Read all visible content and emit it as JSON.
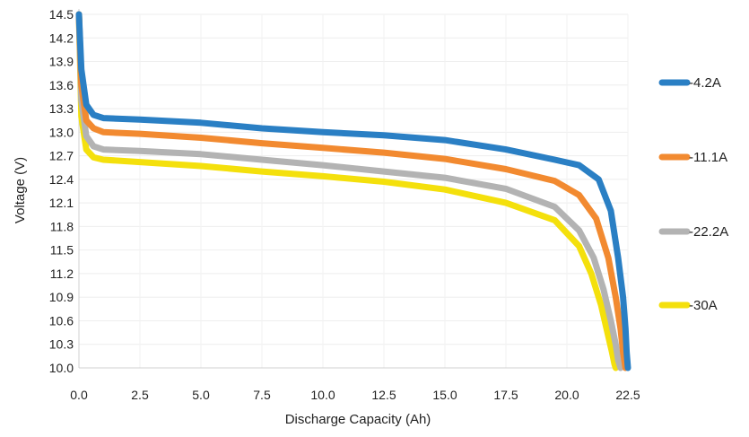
{
  "chart_data": {
    "type": "line",
    "title": "",
    "xlabel": "Discharge Capacity (Ah)",
    "ylabel": "Voltage (V)",
    "xlim": [
      0,
      22.5
    ],
    "ylim": [
      10.0,
      14.5
    ],
    "x_ticks": [
      "0.0",
      "2.5",
      "5.0",
      "7.5",
      "10.0",
      "12.5",
      "15.0",
      "17.5",
      "20.0",
      "22.5"
    ],
    "y_ticks": [
      "10.0",
      "10.3",
      "10.6",
      "10.9",
      "11.2",
      "11.5",
      "11.8",
      "12.1",
      "12.4",
      "12.7",
      "13.0",
      "13.3",
      "13.6",
      "13.9",
      "14.2",
      "14.5"
    ],
    "grid": true,
    "legend_position": "right",
    "series": [
      {
        "name": "-4.2A",
        "color": "#2a7fc4",
        "x": [
          0.0,
          0.1,
          0.3,
          0.6,
          1.0,
          2.5,
          5.0,
          7.5,
          10.0,
          12.5,
          15.0,
          17.5,
          19.5,
          20.5,
          21.3,
          21.8,
          22.1,
          22.3,
          22.4,
          22.45,
          22.5
        ],
        "y": [
          14.5,
          13.8,
          13.35,
          13.22,
          13.18,
          13.16,
          13.12,
          13.05,
          13.0,
          12.96,
          12.9,
          12.78,
          12.65,
          12.58,
          12.4,
          12.0,
          11.4,
          10.9,
          10.5,
          10.2,
          10.0
        ]
      },
      {
        "name": "-11.1A",
        "color": "#f28a30",
        "x": [
          0.0,
          0.1,
          0.3,
          0.6,
          1.0,
          2.5,
          5.0,
          7.5,
          10.0,
          12.5,
          15.0,
          17.5,
          19.5,
          20.5,
          21.2,
          21.7,
          22.0,
          22.2,
          22.3,
          22.4
        ],
        "y": [
          14.5,
          13.6,
          13.15,
          13.05,
          13.0,
          12.98,
          12.93,
          12.86,
          12.8,
          12.74,
          12.66,
          12.53,
          12.38,
          12.2,
          11.9,
          11.4,
          10.9,
          10.5,
          10.2,
          10.0
        ]
      },
      {
        "name": "-22.2A",
        "color": "#b3b3b3",
        "x": [
          0.0,
          0.1,
          0.3,
          0.6,
          1.0,
          2.5,
          5.0,
          7.5,
          10.0,
          12.5,
          15.0,
          17.5,
          19.5,
          20.5,
          21.1,
          21.5,
          21.8,
          22.0,
          22.1,
          22.2
        ],
        "y": [
          14.5,
          13.4,
          12.95,
          12.82,
          12.78,
          12.76,
          12.72,
          12.65,
          12.58,
          12.5,
          12.42,
          12.28,
          12.05,
          11.75,
          11.4,
          11.0,
          10.6,
          10.3,
          10.1,
          10.0
        ]
      },
      {
        "name": "-30A",
        "color": "#f4e00c",
        "x": [
          0.0,
          0.1,
          0.3,
          0.6,
          1.0,
          2.5,
          5.0,
          7.5,
          10.0,
          12.5,
          15.0,
          17.5,
          19.5,
          20.5,
          21.0,
          21.4,
          21.7,
          21.85,
          21.95,
          22.0
        ],
        "y": [
          14.5,
          13.2,
          12.78,
          12.68,
          12.65,
          12.62,
          12.57,
          12.5,
          12.44,
          12.37,
          12.27,
          12.1,
          11.88,
          11.55,
          11.2,
          10.8,
          10.4,
          10.2,
          10.05,
          10.0
        ]
      }
    ]
  }
}
